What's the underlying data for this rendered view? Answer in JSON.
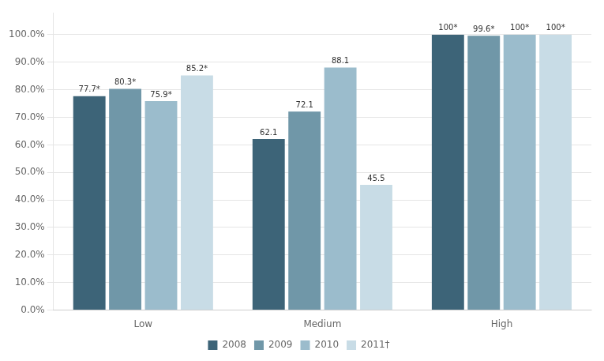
{
  "chart_data": {
    "type": "bar",
    "categories": [
      "Low",
      "Medium",
      "High"
    ],
    "series": [
      {
        "name": "2008",
        "color": "#3d6478",
        "values": [
          77.7,
          62.1,
          100.0
        ],
        "value_labels": [
          "77.7*",
          "62.1",
          "100*"
        ]
      },
      {
        "name": "2009",
        "color": "#7097a8",
        "values": [
          80.3,
          72.1,
          99.6
        ],
        "value_labels": [
          "80.3*",
          "72.1",
          "99.6*"
        ]
      },
      {
        "name": "2010",
        "color": "#9bbccc",
        "values": [
          75.9,
          88.1,
          100.0
        ],
        "value_labels": [
          "75.9*",
          "88.1",
          "100*"
        ]
      },
      {
        "name": "2011†",
        "color": "#c8dce6",
        "values": [
          85.2,
          45.5,
          100.0
        ],
        "value_labels": [
          "85.2*",
          "45.5",
          "100*"
        ]
      }
    ],
    "ylim": [
      0,
      108
    ],
    "yticks": [
      {
        "value": 0,
        "label": "0.0%"
      },
      {
        "value": 10,
        "label": "10.0%"
      },
      {
        "value": 20,
        "label": "20.0%"
      },
      {
        "value": 30,
        "label": "30.0%"
      },
      {
        "value": 40,
        "label": "40.0%"
      },
      {
        "value": 50,
        "label": "50.0%"
      },
      {
        "value": 60,
        "label": "60.0%"
      },
      {
        "value": 70,
        "label": "70.0%"
      },
      {
        "value": 80,
        "label": "80.0%"
      },
      {
        "value": 90,
        "label": "90.0%"
      },
      {
        "value": 100,
        "label": "100.0%"
      }
    ],
    "grid": true,
    "legend": "bottom",
    "data_labels": true
  }
}
